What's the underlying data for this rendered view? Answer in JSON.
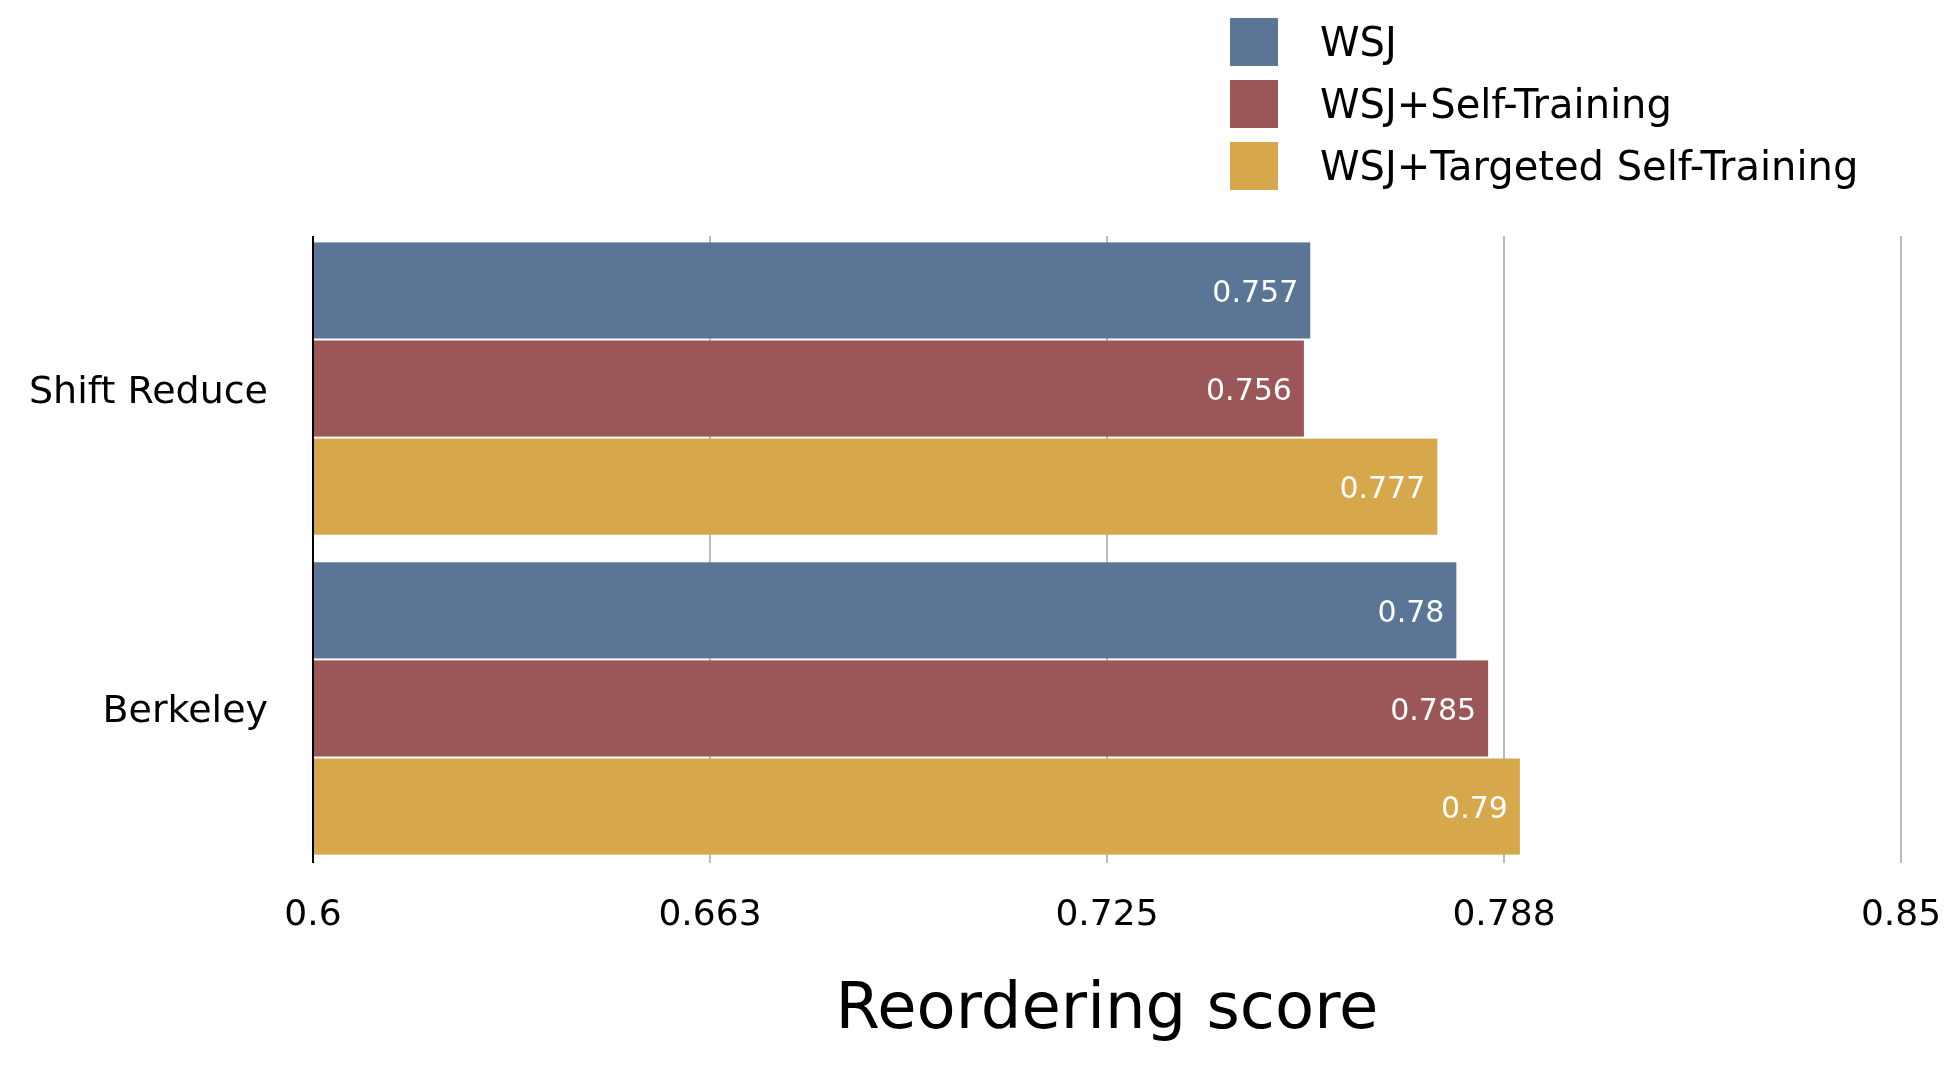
{
  "chart_data": {
    "type": "bar",
    "orientation": "horizontal",
    "xlabel": "Reordering score",
    "categories": [
      "Shift Reduce",
      "Berkeley"
    ],
    "series": [
      {
        "name": "WSJ",
        "color": "#5b7596",
        "values": [
          0.757,
          0.78
        ]
      },
      {
        "name": "WSJ+Self-Training",
        "color": "#9b5658",
        "values": [
          0.756,
          0.785
        ]
      },
      {
        "name": "WSJ+Targeted Self-Training",
        "color": "#d6a84b",
        "values": [
          0.777,
          0.79
        ]
      }
    ],
    "xlim": [
      0.6,
      0.85
    ],
    "xticks": [
      0.6,
      {
        "value": 0.6625,
        "label": "0.663"
      },
      0.725,
      {
        "value": 0.7875,
        "label": "0.788"
      },
      0.85
    ],
    "grid": "x",
    "legend": "top right",
    "data_labels": true
  }
}
